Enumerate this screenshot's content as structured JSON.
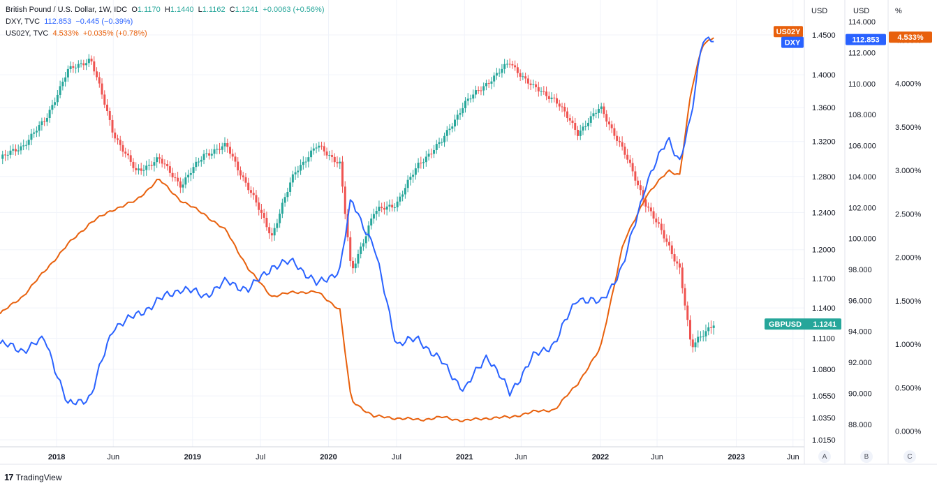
{
  "legend": {
    "gbpusd": {
      "name": "British Pound / U.S. Dollar, 1W, IDC",
      "o_label": "O",
      "o": "1.1170",
      "h_label": "H",
      "h": "1.1440",
      "l_label": "L",
      "l": "1.1162",
      "c_label": "C",
      "c": "1.1241",
      "chg": "+0.0063 (+0.56%)"
    },
    "dxy": {
      "name": "DXY, TVC",
      "value": "112.853",
      "chg": "−0.445 (−0.39%)"
    },
    "us02y": {
      "name": "US02Y, TVC",
      "value": "4.533%",
      "chg": "+0.035% (+0.78%)"
    }
  },
  "axes_headers": {
    "a": "USD",
    "b": "USD",
    "c": "%"
  },
  "axis_buttons": [
    "A",
    "B",
    "C"
  ],
  "footer": {
    "logo": "17",
    "brand": "TradingView"
  },
  "colors": {
    "up": "#26a69a",
    "down": "#ef5350",
    "dxy": "#2962ff",
    "us02y": "#e8600c",
    "grid": "#f0f3fa",
    "text": "#131722"
  },
  "chart_data": {
    "type": "line",
    "time_range": [
      "2017-08",
      "2023-07"
    ],
    "x_ticks": [
      "2018",
      "Jun",
      "2019",
      "Jul",
      "2020",
      "Jul",
      "2021",
      "Jun",
      "2022",
      "Jun",
      "2023",
      "Jun"
    ],
    "axis_a": {
      "unit": "USD",
      "ticks": [
        "1.4500",
        "1.4000",
        "1.3600",
        "1.3200",
        "1.2800",
        "1.2400",
        "1.2000",
        "1.1700",
        "1.1400",
        "1.1100",
        "1.0800",
        "1.0550",
        "1.0350",
        "1.0150"
      ],
      "ylim": [
        1.015,
        1.45
      ]
    },
    "axis_b": {
      "unit": "USD",
      "ticks": [
        "114.000",
        "112.000",
        "110.000",
        "108.000",
        "106.000",
        "104.000",
        "102.000",
        "100.000",
        "98.000",
        "96.000",
        "94.000",
        "92.000",
        "90.000",
        "88.000"
      ],
      "ylim": [
        87.0,
        114.5
      ]
    },
    "axis_c": {
      "unit": "%",
      "ticks": [
        "4.500%",
        "4.000%",
        "3.500%",
        "3.000%",
        "2.500%",
        "2.000%",
        "1.500%",
        "1.000%",
        "0.500%",
        "0.000%"
      ],
      "ylim": [
        -0.1,
        4.8
      ]
    },
    "series": [
      {
        "name": "GBPUSD",
        "axis": "a",
        "style": "candles",
        "last_label": "1.1241",
        "t": [
          "2017-08",
          "2017-10",
          "2017-12",
          "2018-02",
          "2018-04",
          "2018-06",
          "2018-08",
          "2018-10",
          "2018-12",
          "2019-02",
          "2019-04",
          "2019-06",
          "2019-08",
          "2019-10",
          "2019-12",
          "2020-02",
          "2020-03",
          "2020-05",
          "2020-07",
          "2020-09",
          "2020-11",
          "2021-01",
          "2021-03",
          "2021-05",
          "2021-07",
          "2021-09",
          "2021-11",
          "2022-01",
          "2022-03",
          "2022-05",
          "2022-07",
          "2022-08",
          "2022-09",
          "2022-10",
          "2022-11"
        ],
        "v": [
          1.3,
          1.315,
          1.345,
          1.405,
          1.42,
          1.33,
          1.285,
          1.3,
          1.27,
          1.305,
          1.315,
          1.265,
          1.215,
          1.285,
          1.315,
          1.295,
          1.175,
          1.24,
          1.25,
          1.295,
          1.32,
          1.365,
          1.39,
          1.415,
          1.385,
          1.37,
          1.33,
          1.36,
          1.31,
          1.25,
          1.205,
          1.18,
          1.1,
          1.115,
          1.124
        ]
      },
      {
        "name": "DXY",
        "axis": "b",
        "style": "line",
        "last_label": "112.853",
        "t": [
          "2017-08",
          "2017-10",
          "2017-12",
          "2018-02",
          "2018-04",
          "2018-06",
          "2018-08",
          "2018-10",
          "2018-12",
          "2019-02",
          "2019-04",
          "2019-06",
          "2019-08",
          "2019-10",
          "2019-12",
          "2020-02",
          "2020-03",
          "2020-05",
          "2020-07",
          "2020-09",
          "2020-11",
          "2021-01",
          "2021-03",
          "2021-05",
          "2021-07",
          "2021-09",
          "2021-11",
          "2022-01",
          "2022-03",
          "2022-05",
          "2022-07",
          "2022-08",
          "2022-09",
          "2022-10",
          "2022-11"
        ],
        "v": [
          93.2,
          92.8,
          93.5,
          89.2,
          89.8,
          94.3,
          95.0,
          96.0,
          96.8,
          96.3,
          97.2,
          96.7,
          98.2,
          98.5,
          97.0,
          98.0,
          102.5,
          99.5,
          93.2,
          93.5,
          92.0,
          90.2,
          92.5,
          90.0,
          92.3,
          93.3,
          96.2,
          95.8,
          98.2,
          103.5,
          106.5,
          105.0,
          107.7,
          113.0,
          112.85
        ]
      },
      {
        "name": "US02Y",
        "axis": "c",
        "style": "line",
        "last_label": "4.533%",
        "t": [
          "2017-08",
          "2017-10",
          "2017-12",
          "2018-02",
          "2018-04",
          "2018-06",
          "2018-08",
          "2018-10",
          "2018-12",
          "2019-02",
          "2019-04",
          "2019-06",
          "2019-08",
          "2019-10",
          "2019-12",
          "2020-02",
          "2020-03",
          "2020-05",
          "2020-07",
          "2020-09",
          "2020-11",
          "2021-01",
          "2021-03",
          "2021-05",
          "2021-07",
          "2021-09",
          "2021-11",
          "2022-01",
          "2022-03",
          "2022-05",
          "2022-07",
          "2022-08",
          "2022-09",
          "2022-10",
          "2022-11"
        ],
        "v": [
          1.35,
          1.55,
          1.85,
          2.15,
          2.4,
          2.55,
          2.65,
          2.9,
          2.65,
          2.5,
          2.3,
          1.85,
          1.55,
          1.6,
          1.6,
          1.4,
          0.35,
          0.17,
          0.15,
          0.13,
          0.16,
          0.12,
          0.15,
          0.16,
          0.22,
          0.25,
          0.55,
          0.95,
          2.15,
          2.7,
          3.0,
          2.95,
          3.9,
          4.45,
          4.533
        ]
      }
    ]
  }
}
